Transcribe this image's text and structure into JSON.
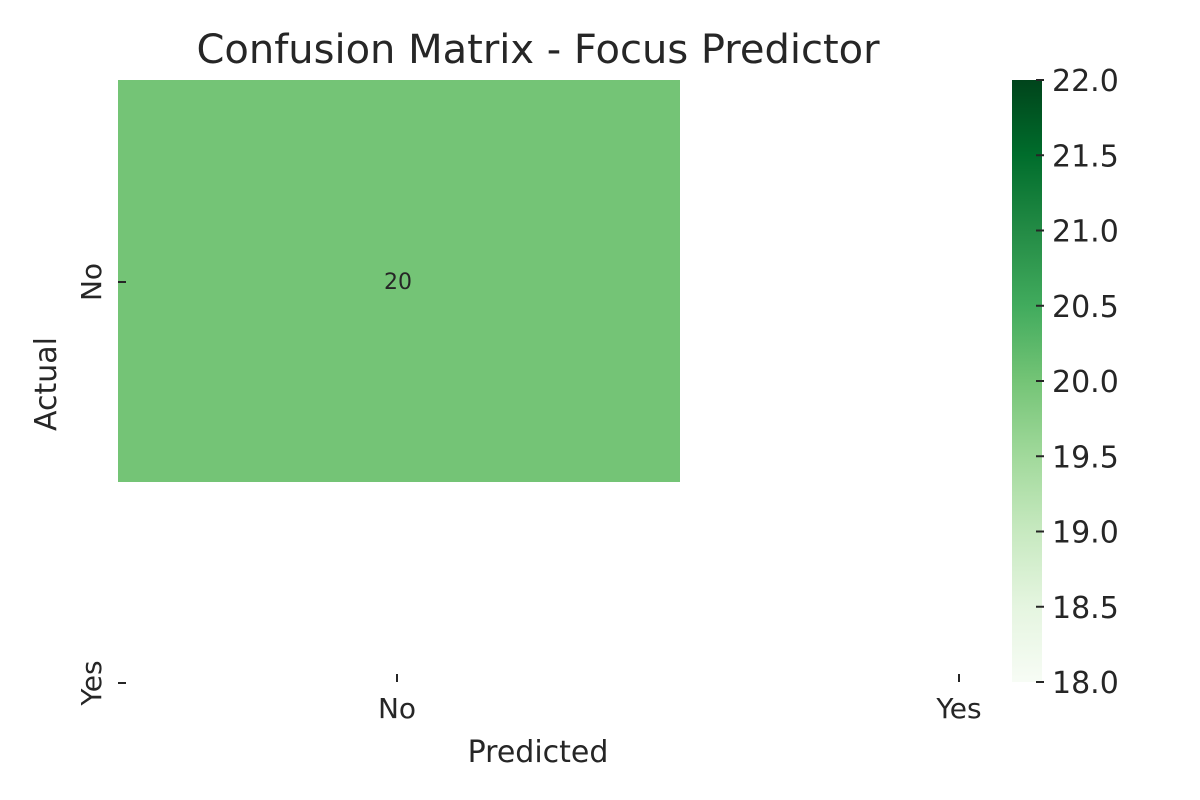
{
  "chart_data": {
    "type": "heatmap",
    "title": "Confusion Matrix - Focus Predictor",
    "xlabel": "Predicted",
    "ylabel": "Actual",
    "x_categories": [
      "No",
      "Yes"
    ],
    "y_categories": [
      "No",
      "Yes"
    ],
    "cells": [
      {
        "row": "No",
        "col": "No",
        "value": 20,
        "label": "20"
      }
    ],
    "colorbar": {
      "colormap": "Greens",
      "min": 18.0,
      "max": 22.0,
      "ticks": [
        "18.0",
        "18.5",
        "19.0",
        "19.5",
        "20.0",
        "20.5",
        "21.0",
        "21.5",
        "22.0"
      ],
      "colors": [
        "#f7fcf5",
        "#e5f5e0",
        "#c7e9c0",
        "#a1d99b",
        "#74c476",
        "#41ab5d",
        "#238b45",
        "#006d2c",
        "#00441b"
      ]
    },
    "grid": false
  }
}
